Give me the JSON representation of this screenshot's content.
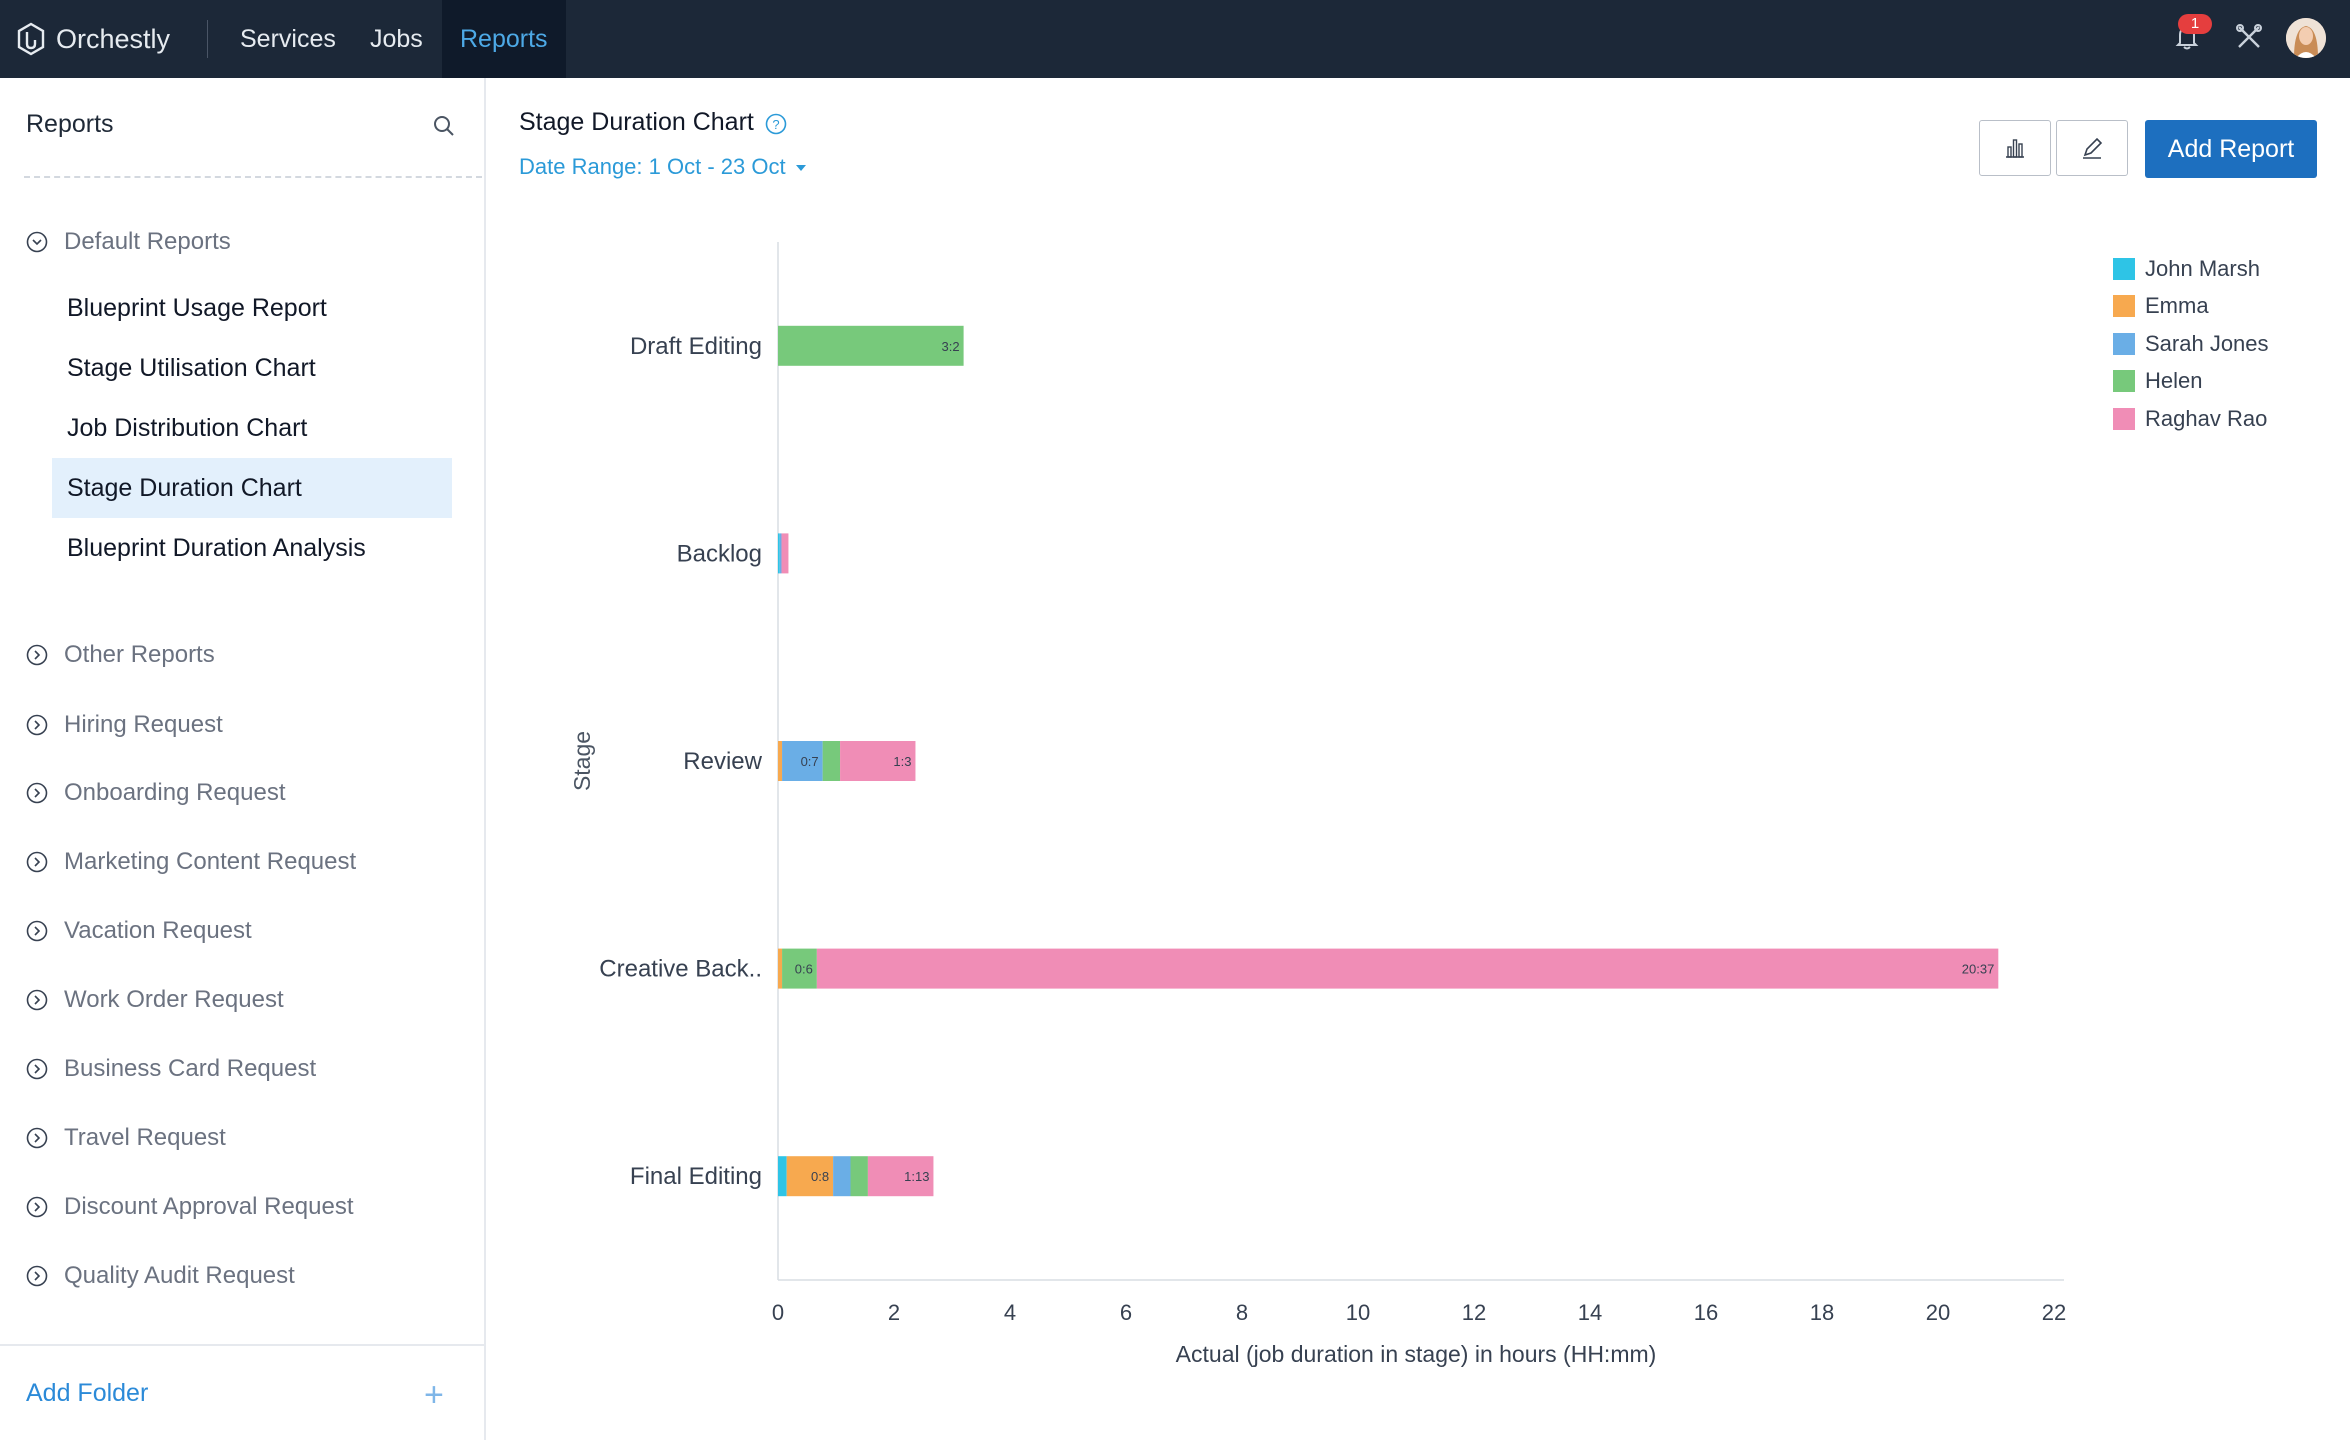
{
  "app": {
    "name": "Orchestly"
  },
  "nav": {
    "services": "Services",
    "jobs": "Jobs",
    "reports": "Reports"
  },
  "notifications": {
    "count": "1"
  },
  "sidebar": {
    "title": "Reports",
    "default_folder": "Default Reports",
    "default_reports": [
      "Blueprint Usage Report",
      "Stage Utilisation Chart",
      "Job Distribution Chart",
      "Stage Duration Chart",
      "Blueprint Duration Analysis"
    ],
    "active_report": "Stage Duration Chart",
    "other_folders": [
      "Other Reports",
      "Hiring Request",
      "Onboarding Request",
      "Marketing Content Request",
      "Vacation Request",
      "Work Order Request",
      "Business Card Request",
      "Travel Request",
      "Discount Approval Request",
      "Quality Audit Request"
    ],
    "add_folder": "Add Folder"
  },
  "header": {
    "title": "Stage Duration Chart",
    "date_range": "Date Range: 1 Oct - 23 Oct",
    "add_report": "Add Report"
  },
  "chart_data": {
    "type": "bar",
    "orientation": "horizontal",
    "stacked": true,
    "xlabel": "Actual (job duration in stage) in hours (HH:mm)",
    "ylabel": "Stage",
    "xlim": [
      0,
      22
    ],
    "xticks": [
      0,
      2,
      4,
      6,
      8,
      10,
      12,
      14,
      16,
      18,
      20,
      22
    ],
    "categories": [
      "Draft Editing",
      "Backlog",
      "Review",
      "Creative Back..",
      "Final Editing"
    ],
    "legend_position": "top-right",
    "series": [
      {
        "name": "John Marsh",
        "color": "#2ec4e6",
        "values": [
          0,
          0.03,
          0,
          0,
          0.15
        ]
      },
      {
        "name": "Emma",
        "color": "#f7a94f",
        "values": [
          0,
          0,
          0.07,
          0.07,
          0.8
        ],
        "labels": [
          "",
          "",
          "",
          "",
          "0:8"
        ]
      },
      {
        "name": "Sarah Jones",
        "color": "#6aaee6",
        "values": [
          0,
          0.03,
          0.7,
          0,
          0.3
        ],
        "labels": [
          "",
          "",
          "0:7",
          "",
          ""
        ]
      },
      {
        "name": "Helen",
        "color": "#77c97b",
        "values": [
          3.2,
          0,
          0.3,
          0.6,
          0.3
        ],
        "labels": [
          "3:2",
          "",
          "",
          "0:6",
          ""
        ]
      },
      {
        "name": "Raghav Rao",
        "color": "#f08db6",
        "values": [
          0,
          0.12,
          1.3,
          20.37,
          1.13
        ],
        "labels": [
          "",
          "",
          "1:3",
          "20:37",
          "1:13"
        ]
      }
    ]
  }
}
